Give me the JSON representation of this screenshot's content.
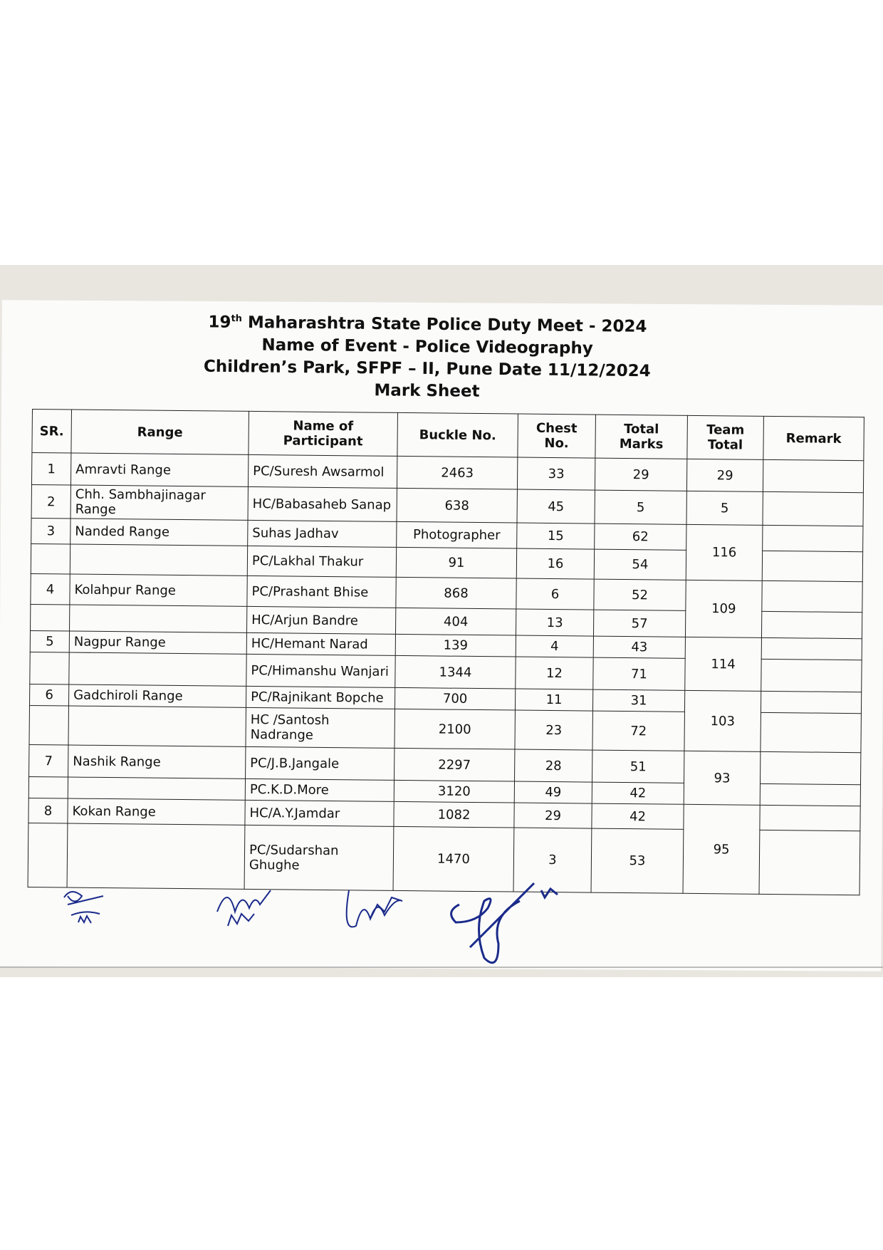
{
  "header": {
    "title_ordinal": "19",
    "title_suffix": "th",
    "title_rest": " Maharashtra State Police Duty Meet  - 2024",
    "event": "Name of Event - Police Videography",
    "venue_date": "Children’s Park, SFPF – II, Pune Date 11/12/2024",
    "sheet": "Mark Sheet"
  },
  "columns": [
    "SR.",
    "Range",
    "Name of Participant",
    "Buckle No.",
    "Chest No.",
    "Total Marks",
    "Team Total",
    "Remark"
  ],
  "teams": [
    {
      "sr": "1",
      "range": "Amravti Range",
      "team_total": "29",
      "members": [
        {
          "name": "PC/Suresh Awsarmol",
          "buckle": "2463",
          "chest": "33",
          "marks": "29"
        }
      ]
    },
    {
      "sr": "2",
      "range": "Chh. Sambhajinagar Range",
      "team_total": "5",
      "members": [
        {
          "name": "HC/Babasaheb Sanap",
          "buckle": "638",
          "chest": "45",
          "marks": "5"
        }
      ]
    },
    {
      "sr": "3",
      "range": "Nanded Range",
      "team_total": "116",
      "members": [
        {
          "name": "Suhas Jadhav",
          "buckle": "Photographer",
          "chest": "15",
          "marks": "62"
        },
        {
          "name": "PC/Lakhal Thakur",
          "buckle": "91",
          "chest": "16",
          "marks": "54"
        }
      ]
    },
    {
      "sr": "4",
      "range": "Kolahpur Range",
      "team_total": "109",
      "members": [
        {
          "name": "PC/Prashant Bhise",
          "buckle": "868",
          "chest": "6",
          "marks": "52"
        },
        {
          "name": "HC/Arjun Bandre",
          "buckle": "404",
          "chest": "13",
          "marks": "57"
        }
      ]
    },
    {
      "sr": "5",
      "range": "Nagpur Range",
      "team_total": "114",
      "members": [
        {
          "name": "HC/Hemant Narad",
          "buckle": "139",
          "chest": "4",
          "marks": "43"
        },
        {
          "name": "PC/Himanshu Wanjari",
          "buckle": "1344",
          "chest": "12",
          "marks": "71"
        }
      ]
    },
    {
      "sr": "6",
      "range": "Gadchiroli Range",
      "team_total": "103",
      "members": [
        {
          "name": "PC/Rajnikant Bopche",
          "buckle": "700",
          "chest": "11",
          "marks": "31"
        },
        {
          "name": "HC  /Santosh Nadrange",
          "buckle": "2100",
          "chest": "23",
          "marks": "72"
        }
      ]
    },
    {
      "sr": "7",
      "range": "Nashik Range",
      "team_total": "93",
      "members": [
        {
          "name": "PC/J.B.Jangale",
          "buckle": "2297",
          "chest": "28",
          "marks": "51"
        },
        {
          "name": "PC.K.D.More",
          "buckle": "3120",
          "chest": "49",
          "marks": "42"
        }
      ]
    },
    {
      "sr": "8",
      "range": "Kokan Range",
      "team_total": "95",
      "members": [
        {
          "name": "HC/A.Y.Jamdar",
          "buckle": "1082",
          "chest": "29",
          "marks": "42"
        },
        {
          "name": "PC/Sudarshan Ghughe",
          "buckle": "1470",
          "chest": "3",
          "marks": "53"
        }
      ]
    }
  ],
  "signature_ink": "#1a2a8a"
}
